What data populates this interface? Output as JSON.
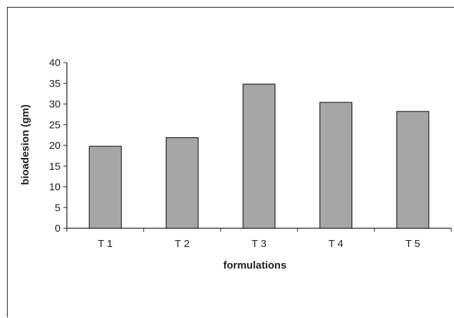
{
  "chart_data": {
    "type": "bar",
    "title": "",
    "xlabel": "formulations",
    "ylabel": "bioadesion (gm)",
    "categories": [
      "T 1",
      "T 2",
      "T 3",
      "T 4",
      "T 5"
    ],
    "values": [
      19.8,
      21.9,
      34.8,
      30.4,
      28.2
    ],
    "ylim": [
      0,
      40
    ],
    "yticks": [
      "0",
      "5",
      "10",
      "15",
      "20",
      "25",
      "30",
      "35",
      "40"
    ],
    "grid": false,
    "legend": "none",
    "bar_color": "#a6a6a6",
    "bar_stroke": "#222222"
  }
}
